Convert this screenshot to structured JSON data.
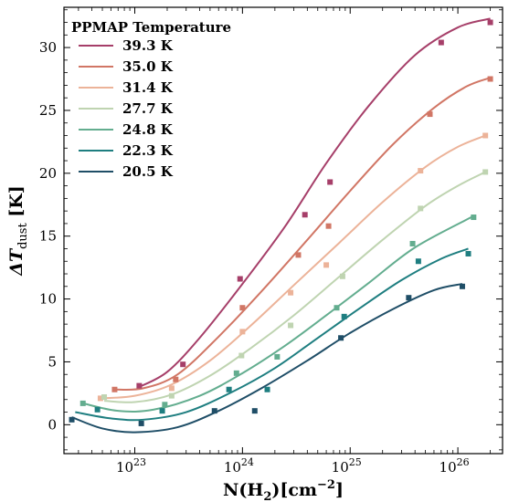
{
  "chart_data": {
    "type": "scatter",
    "xscale": "log",
    "xlim": [
      2.2e+22,
      2.6e+26
    ],
    "ylim": [
      -2.3,
      33.2
    ],
    "xlabel": "N(H₂)[cm⁻²]",
    "ylabel": "ΔT_dust [K]",
    "xlabel_parts": {
      "main": "N(H",
      "sub": "2",
      "mid": ")[cm",
      "sup": "−2",
      "end": "]"
    },
    "ylabel_parts": {
      "main": "ΔT",
      "sub": "dust",
      "end": " [K]"
    },
    "x_tick_labels": [
      {
        "value": 1e+23,
        "base": "10",
        "exp": "23"
      },
      {
        "value": 1e+24,
        "base": "10",
        "exp": "24"
      },
      {
        "value": 1e+25,
        "base": "10",
        "exp": "25"
      },
      {
        "value": 1e+26,
        "base": "10",
        "exp": "26"
      }
    ],
    "y_ticks": [
      0,
      5,
      10,
      15,
      20,
      25,
      30
    ],
    "y_tick_labels": [
      "0",
      "5",
      "10",
      "15",
      "20",
      "25",
      "30"
    ],
    "grid": false,
    "legend": {
      "title": "PPMAP Temperature",
      "placement": "top-left"
    },
    "series": [
      {
        "name": "39.3 K",
        "color": "#a63f69",
        "points": [
          [
            1.1e+23,
            3.1
          ],
          [
            2.8e+23,
            4.8
          ],
          [
            9.5e+23,
            11.6
          ],
          [
            3.8e+24,
            16.7
          ],
          [
            6.5e+24,
            19.3
          ],
          [
            7e+25,
            30.4
          ],
          [
            2e+26,
            32.0
          ]
        ],
        "fit": [
          [
            1.1e+23,
            3.0
          ],
          [
            2e+23,
            4.2
          ],
          [
            4e+23,
            6.9
          ],
          [
            1e+24,
            11.2
          ],
          [
            2.5e+24,
            15.8
          ],
          [
            6e+24,
            20.8
          ],
          [
            1.5e+25,
            25.4
          ],
          [
            4e+25,
            29.4
          ],
          [
            1e+26,
            31.6
          ],
          [
            2e+26,
            32.3
          ]
        ]
      },
      {
        "name": "35.0 K",
        "color": "#d17665",
        "points": [
          [
            6.5e+22,
            2.8
          ],
          [
            2.4e+23,
            3.6
          ],
          [
            1e+24,
            9.3
          ],
          [
            3.3e+24,
            13.5
          ],
          [
            6.3e+24,
            15.8
          ],
          [
            5.5e+25,
            24.7
          ],
          [
            2e+26,
            27.5
          ]
        ],
        "fit": [
          [
            6.5e+22,
            2.8
          ],
          [
            1.2e+23,
            2.9
          ],
          [
            2.5e+23,
            4.0
          ],
          [
            6e+23,
            7.0
          ],
          [
            1.5e+24,
            10.6
          ],
          [
            4e+24,
            14.7
          ],
          [
            1e+25,
            18.6
          ],
          [
            2.5e+25,
            22.3
          ],
          [
            6e+25,
            25.2
          ],
          [
            1.2e+26,
            26.9
          ],
          [
            2e+26,
            27.6
          ]
        ]
      },
      {
        "name": "31.4 K",
        "color": "#ecb399",
        "points": [
          [
            4.8e+22,
            2.1
          ],
          [
            2.2e+23,
            2.9
          ],
          [
            1e+24,
            7.4
          ],
          [
            2.8e+24,
            10.5
          ],
          [
            6e+24,
            12.7
          ],
          [
            4.5e+25,
            20.2
          ],
          [
            1.8e+26,
            23.0
          ]
        ],
        "fit": [
          [
            4.8e+22,
            2.1
          ],
          [
            1e+23,
            2.3
          ],
          [
            2.2e+23,
            3.2
          ],
          [
            5e+23,
            5.1
          ],
          [
            1.2e+24,
            7.9
          ],
          [
            3e+24,
            11.1
          ],
          [
            8e+24,
            14.5
          ],
          [
            2e+25,
            17.7
          ],
          [
            5e+25,
            20.5
          ],
          [
            1e+26,
            22.1
          ],
          [
            1.8e+26,
            23.0
          ]
        ]
      },
      {
        "name": "27.7 K",
        "color": "#bfd4b1",
        "points": [
          [
            5.2e+22,
            2.2
          ],
          [
            2.2e+23,
            2.3
          ],
          [
            9.8e+23,
            5.5
          ],
          [
            2.8e+24,
            7.9
          ],
          [
            8.5e+24,
            11.8
          ],
          [
            4.5e+25,
            17.2
          ],
          [
            1.8e+26,
            20.1
          ]
        ],
        "fit": [
          [
            5.2e+22,
            1.9
          ],
          [
            1e+23,
            1.8
          ],
          [
            2.2e+23,
            2.4
          ],
          [
            5e+23,
            3.9
          ],
          [
            1.2e+24,
            6.1
          ],
          [
            3e+24,
            8.7
          ],
          [
            8e+24,
            11.8
          ],
          [
            2e+25,
            14.7
          ],
          [
            5e+25,
            17.4
          ],
          [
            1e+26,
            19.0
          ],
          [
            1.8e+26,
            20.1
          ]
        ]
      },
      {
        "name": "24.8 K",
        "color": "#63ad8f",
        "points": [
          [
            3.3e+22,
            1.7
          ],
          [
            1.9e+23,
            1.6
          ],
          [
            8.8e+23,
            4.1
          ],
          [
            2.1e+24,
            5.4
          ],
          [
            7.5e+24,
            9.3
          ],
          [
            3.8e+25,
            14.4
          ],
          [
            1.4e+26,
            16.5
          ]
        ],
        "fit": [
          [
            3.3e+22,
            1.7
          ],
          [
            7e+22,
            1.1
          ],
          [
            1.5e+23,
            1.2
          ],
          [
            4e+23,
            2.3
          ],
          [
            1e+24,
            4.1
          ],
          [
            2.5e+24,
            6.3
          ],
          [
            6e+24,
            8.7
          ],
          [
            1.5e+25,
            11.3
          ],
          [
            4e+25,
            14.1
          ],
          [
            1.4e+26,
            16.6
          ]
        ]
      },
      {
        "name": "22.3 K",
        "color": "#1e7e80",
        "points": [
          [
            4.5e+22,
            1.2
          ],
          [
            1.8e+23,
            1.1
          ],
          [
            7.5e+23,
            2.8
          ],
          [
            1.7e+24,
            2.8
          ],
          [
            8.8e+24,
            8.6
          ],
          [
            4.3e+25,
            13.0
          ],
          [
            1.25e+26,
            13.6
          ]
        ],
        "fit": [
          [
            2.8e+22,
            1.0
          ],
          [
            6e+22,
            0.5
          ],
          [
            1.2e+23,
            0.4
          ],
          [
            3e+23,
            1.0
          ],
          [
            8e+23,
            2.6
          ],
          [
            2e+24,
            4.5
          ],
          [
            5e+24,
            6.9
          ],
          [
            1.2e+25,
            9.2
          ],
          [
            3e+25,
            11.5
          ],
          [
            7e+25,
            13.2
          ],
          [
            1.25e+26,
            14.0
          ]
        ]
      },
      {
        "name": "20.5 K",
        "color": "#1f4e67",
        "points": [
          [
            2.6e+22,
            0.4
          ],
          [
            1.15e+23,
            0.1
          ],
          [
            5.5e+23,
            1.1
          ],
          [
            1.3e+24,
            1.1
          ],
          [
            8.2e+24,
            6.9
          ],
          [
            3.5e+25,
            10.1
          ],
          [
            1.1e+26,
            11.0
          ]
        ],
        "fit": [
          [
            2.6e+22,
            0.6
          ],
          [
            5e+22,
            -0.3
          ],
          [
            1e+23,
            -0.6
          ],
          [
            2.5e+23,
            -0.2
          ],
          [
            6e+23,
            1.1
          ],
          [
            1.5e+24,
            2.9
          ],
          [
            4e+24,
            5.1
          ],
          [
            1e+25,
            7.3
          ],
          [
            2.5e+25,
            9.2
          ],
          [
            6e+25,
            10.7
          ],
          [
            1.1e+26,
            11.2
          ]
        ]
      }
    ]
  }
}
